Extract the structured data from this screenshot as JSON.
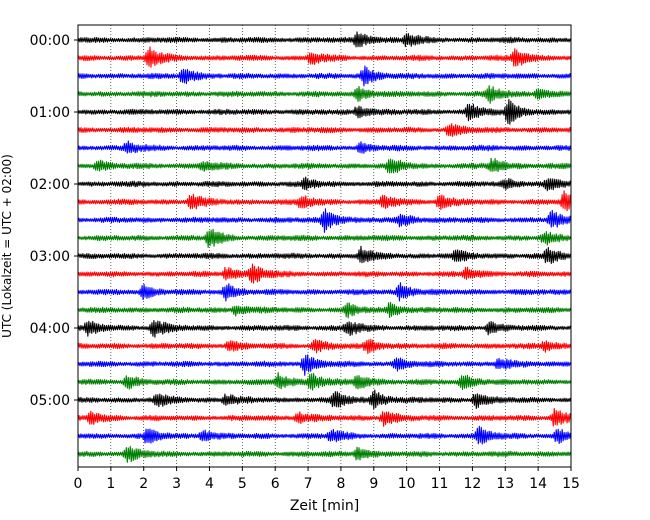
{
  "chart_data": {
    "type": "line",
    "subtype": "seismogram-helicorder",
    "title": "",
    "xlabel": "Zeit  [min]",
    "ylabel": "UTC (Lokalzeit = UTC + 02:00)",
    "xlim": [
      0,
      15
    ],
    "x_ticks": [
      "0",
      "1",
      "2",
      "3",
      "4",
      "5",
      "6",
      "7",
      "8",
      "9",
      "10",
      "11",
      "12",
      "13",
      "14",
      "15"
    ],
    "y_ticks": [
      {
        "row": 0,
        "label": "00:00"
      },
      {
        "row": 4,
        "label": "01:00"
      },
      {
        "row": 8,
        "label": "02:00"
      },
      {
        "row": 12,
        "label": "03:00"
      },
      {
        "row": 16,
        "label": "04:00"
      },
      {
        "row": 20,
        "label": "05:00"
      }
    ],
    "trace_count": 24,
    "minutes_per_trace": 15,
    "trace_colors": [
      "#000000",
      "#ff0000",
      "#0000ff",
      "#008000"
    ],
    "grid": "vertical dotted at each minute",
    "events": [
      {
        "row": 0,
        "x": 8.5,
        "amp": 1.0
      },
      {
        "row": 0,
        "x": 10.0,
        "amp": 0.8
      },
      {
        "row": 1,
        "x": 2.15,
        "amp": 1.3
      },
      {
        "row": 1,
        "x": 7.1,
        "amp": 0.8
      },
      {
        "row": 1,
        "x": 13.3,
        "amp": 1.2
      },
      {
        "row": 2,
        "x": 3.2,
        "amp": 1.0
      },
      {
        "row": 2,
        "x": 8.7,
        "amp": 1.1
      },
      {
        "row": 3,
        "x": 8.5,
        "amp": 0.8
      },
      {
        "row": 3,
        "x": 12.5,
        "amp": 1.0
      },
      {
        "row": 3,
        "x": 14.0,
        "amp": 0.6
      },
      {
        "row": 4,
        "x": 8.5,
        "amp": 0.7
      },
      {
        "row": 4,
        "x": 11.9,
        "amp": 1.0
      },
      {
        "row": 4,
        "x": 13.1,
        "amp": 1.4
      },
      {
        "row": 5,
        "x": 11.3,
        "amp": 0.8
      },
      {
        "row": 6,
        "x": 1.5,
        "amp": 0.7
      },
      {
        "row": 6,
        "x": 8.6,
        "amp": 0.5
      },
      {
        "row": 7,
        "x": 0.6,
        "amp": 0.6
      },
      {
        "row": 7,
        "x": 3.8,
        "amp": 0.6
      },
      {
        "row": 7,
        "x": 9.5,
        "amp": 1.1
      },
      {
        "row": 7,
        "x": 12.6,
        "amp": 0.9
      },
      {
        "row": 8,
        "x": 6.9,
        "amp": 0.6
      },
      {
        "row": 8,
        "x": 13.0,
        "amp": 0.6
      },
      {
        "row": 8,
        "x": 14.3,
        "amp": 0.7
      },
      {
        "row": 9,
        "x": 3.45,
        "amp": 1.0
      },
      {
        "row": 9,
        "x": 6.8,
        "amp": 0.8
      },
      {
        "row": 9,
        "x": 9.3,
        "amp": 0.8
      },
      {
        "row": 9,
        "x": 11.0,
        "amp": 0.8
      },
      {
        "row": 9,
        "x": 14.8,
        "amp": 1.2
      },
      {
        "row": 10,
        "x": 7.5,
        "amp": 1.4
      },
      {
        "row": 10,
        "x": 9.8,
        "amp": 0.8
      },
      {
        "row": 10,
        "x": 14.4,
        "amp": 1.0
      },
      {
        "row": 11,
        "x": 4.0,
        "amp": 1.2
      },
      {
        "row": 11,
        "x": 14.2,
        "amp": 0.7
      },
      {
        "row": 12,
        "x": 8.6,
        "amp": 1.0
      },
      {
        "row": 12,
        "x": 11.5,
        "amp": 0.7
      },
      {
        "row": 12,
        "x": 14.3,
        "amp": 1.0
      },
      {
        "row": 13,
        "x": 4.5,
        "amp": 0.8
      },
      {
        "row": 13,
        "x": 5.3,
        "amp": 1.2
      },
      {
        "row": 13,
        "x": 11.8,
        "amp": 0.7
      },
      {
        "row": 14,
        "x": 2.0,
        "amp": 0.8
      },
      {
        "row": 14,
        "x": 4.5,
        "amp": 1.0
      },
      {
        "row": 14,
        "x": 9.8,
        "amp": 1.0
      },
      {
        "row": 15,
        "x": 4.8,
        "amp": 0.6
      },
      {
        "row": 15,
        "x": 8.2,
        "amp": 0.7
      },
      {
        "row": 15,
        "x": 9.5,
        "amp": 0.9
      },
      {
        "row": 16,
        "x": 0.3,
        "amp": 0.8
      },
      {
        "row": 16,
        "x": 2.3,
        "amp": 1.2
      },
      {
        "row": 16,
        "x": 8.2,
        "amp": 1.0
      },
      {
        "row": 16,
        "x": 12.5,
        "amp": 0.7
      },
      {
        "row": 17,
        "x": 4.6,
        "amp": 0.6
      },
      {
        "row": 17,
        "x": 7.2,
        "amp": 0.7
      },
      {
        "row": 17,
        "x": 8.8,
        "amp": 0.8
      },
      {
        "row": 17,
        "x": 14.2,
        "amp": 0.6
      },
      {
        "row": 18,
        "x": 6.9,
        "amp": 1.2
      },
      {
        "row": 18,
        "x": 9.7,
        "amp": 0.7
      },
      {
        "row": 18,
        "x": 12.8,
        "amp": 0.7
      },
      {
        "row": 19,
        "x": 1.5,
        "amp": 0.8
      },
      {
        "row": 19,
        "x": 6.1,
        "amp": 1.0
      },
      {
        "row": 19,
        "x": 7.1,
        "amp": 1.0
      },
      {
        "row": 19,
        "x": 8.5,
        "amp": 0.9
      },
      {
        "row": 19,
        "x": 11.7,
        "amp": 1.0
      },
      {
        "row": 20,
        "x": 2.4,
        "amp": 0.8
      },
      {
        "row": 20,
        "x": 4.5,
        "amp": 0.7
      },
      {
        "row": 20,
        "x": 7.8,
        "amp": 1.0
      },
      {
        "row": 20,
        "x": 9.0,
        "amp": 1.1
      },
      {
        "row": 20,
        "x": 12.1,
        "amp": 0.9
      },
      {
        "row": 21,
        "x": 0.4,
        "amp": 0.7
      },
      {
        "row": 21,
        "x": 6.7,
        "amp": 0.7
      },
      {
        "row": 21,
        "x": 9.3,
        "amp": 0.9
      },
      {
        "row": 21,
        "x": 14.5,
        "amp": 1.1
      },
      {
        "row": 22,
        "x": 2.1,
        "amp": 0.9
      },
      {
        "row": 22,
        "x": 3.8,
        "amp": 0.7
      },
      {
        "row": 22,
        "x": 7.7,
        "amp": 0.8
      },
      {
        "row": 22,
        "x": 12.2,
        "amp": 1.1
      },
      {
        "row": 22,
        "x": 14.6,
        "amp": 0.9
      },
      {
        "row": 23,
        "x": 1.5,
        "amp": 1.0
      },
      {
        "row": 23,
        "x": 8.5,
        "amp": 0.7
      }
    ]
  }
}
